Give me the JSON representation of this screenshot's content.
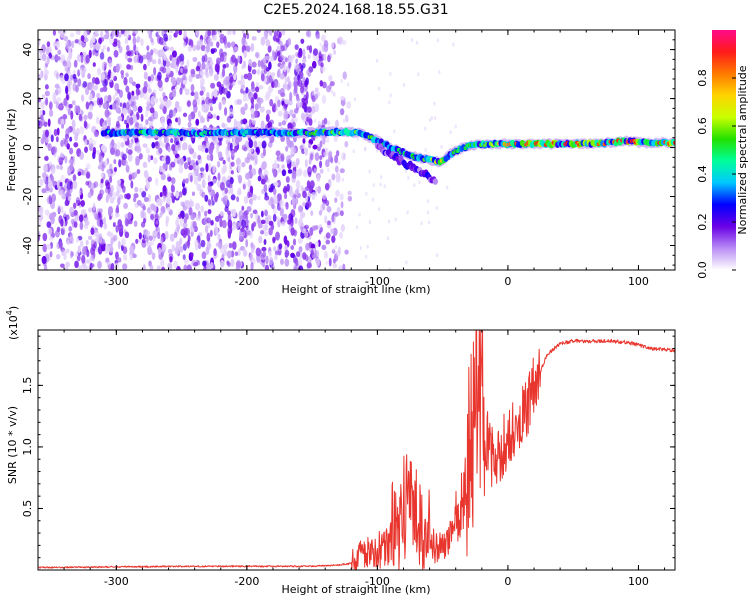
{
  "title": "C2E5.2024.168.18.55.G31",
  "colors": {
    "snr_line": "#e8362e",
    "axis": "#000000",
    "colorbar_stops": [
      "#ffffff",
      "#b98cf5",
      "#6a00e6",
      "#0000ff",
      "#00c8ff",
      "#00ff9a",
      "#22e000",
      "#c8ff00",
      "#ffd400",
      "#ff7a00",
      "#ff1a1a",
      "#ff0a8a"
    ]
  },
  "chart_data": [
    {
      "type": "heatmap",
      "x": {
        "label": "Height of straight line (km)",
        "range": [
          -360,
          128
        ],
        "ticks": [
          -300,
          -200,
          -100,
          0,
          100
        ],
        "tick_labels": [
          "-300",
          "-200",
          "-100",
          "0",
          "100"
        ]
      },
      "y": {
        "label": "Frequency (Hz)",
        "range": [
          -50,
          48
        ],
        "ticks": [
          -40,
          -20,
          0,
          20,
          40
        ],
        "tick_labels": [
          "-40",
          "-20",
          "0",
          "20",
          "40"
        ]
      },
      "colorbar": {
        "label": "Normalized spectral amplitude",
        "range": [
          0,
          1
        ],
        "ticks": [
          0.0,
          0.2,
          0.4,
          0.6,
          0.8
        ],
        "tick_labels": [
          "0.0",
          "0.2",
          "0.4",
          "0.6",
          "0.8"
        ]
      },
      "noise_extent_x": [
        -360,
        -130
      ],
      "ridge": {
        "x": [
          -310,
          -280,
          -250,
          -220,
          -190,
          -170,
          -150,
          -130,
          -115,
          -100,
          -90,
          -80,
          -70,
          -60,
          -52,
          -45,
          -35,
          -25,
          -15,
          -5,
          5,
          20,
          40,
          60,
          80,
          90,
          100,
          128
        ],
        "y": [
          6,
          6,
          6,
          6,
          6,
          6,
          6,
          6.5,
          6,
          3,
          0,
          -2,
          -4,
          -5,
          -6,
          -3,
          0,
          1,
          1.5,
          1.5,
          1.5,
          1.5,
          1.5,
          1.5,
          2,
          3,
          2,
          2
        ],
        "amplitude": [
          0.45,
          0.55,
          0.45,
          0.5,
          0.4,
          0.5,
          0.55,
          0.6,
          0.6,
          0.55,
          0.5,
          0.5,
          0.55,
          0.6,
          0.8,
          0.55,
          0.5,
          0.55,
          0.6,
          0.75,
          0.85,
          0.9,
          0.9,
          0.9,
          0.85,
          0.95,
          0.9,
          0.9
        ]
      },
      "lower_branch": {
        "x": [
          -100,
          -90,
          -80,
          -70,
          -60,
          -55
        ],
        "y": [
          1,
          -3,
          -6,
          -9,
          -12,
          -14
        ]
      }
    },
    {
      "type": "line",
      "x": {
        "label": "Height of straight line (km)",
        "range": [
          -360,
          128
        ],
        "ticks": [
          -300,
          -200,
          -100,
          0,
          100
        ],
        "tick_labels": [
          "-300",
          "-200",
          "-100",
          "0",
          "100"
        ]
      },
      "y": {
        "label": "SNR (10 * v/v)",
        "multiplier": "(x10",
        "multiplier_exp": "4",
        "multiplier_close": ")",
        "range": [
          0,
          1.95
        ],
        "ticks": [
          0.5,
          1.0,
          1.5
        ],
        "tick_labels": [
          "0.5",
          "1.0",
          "1.5"
        ]
      },
      "series": [
        {
          "x": [
            -360,
            -300,
            -250,
            -200,
            -150,
            -130,
            -115,
            -100,
            -90,
            -85,
            -80,
            -75,
            -70,
            -65,
            -60,
            -55,
            -50,
            -45,
            -40,
            -35,
            -30,
            -28,
            -25,
            -22,
            -20,
            -15,
            -10,
            -5,
            0,
            5,
            10,
            15,
            20,
            25,
            30,
            40,
            50,
            60,
            70,
            80,
            90,
            100,
            110,
            120,
            128
          ],
          "y": [
            0.02,
            0.025,
            0.03,
            0.03,
            0.03,
            0.04,
            0.06,
            0.1,
            0.14,
            0.2,
            0.3,
            0.4,
            0.3,
            0.2,
            0.15,
            0.12,
            0.1,
            0.2,
            0.4,
            0.55,
            0.8,
            1.0,
            1.2,
            1.4,
            1.2,
            1.0,
            0.9,
            1.0,
            1.05,
            1.15,
            1.2,
            1.3,
            1.5,
            1.62,
            1.75,
            1.84,
            1.86,
            1.86,
            1.86,
            1.86,
            1.85,
            1.83,
            1.8,
            1.79,
            1.78
          ]
        }
      ]
    }
  ]
}
